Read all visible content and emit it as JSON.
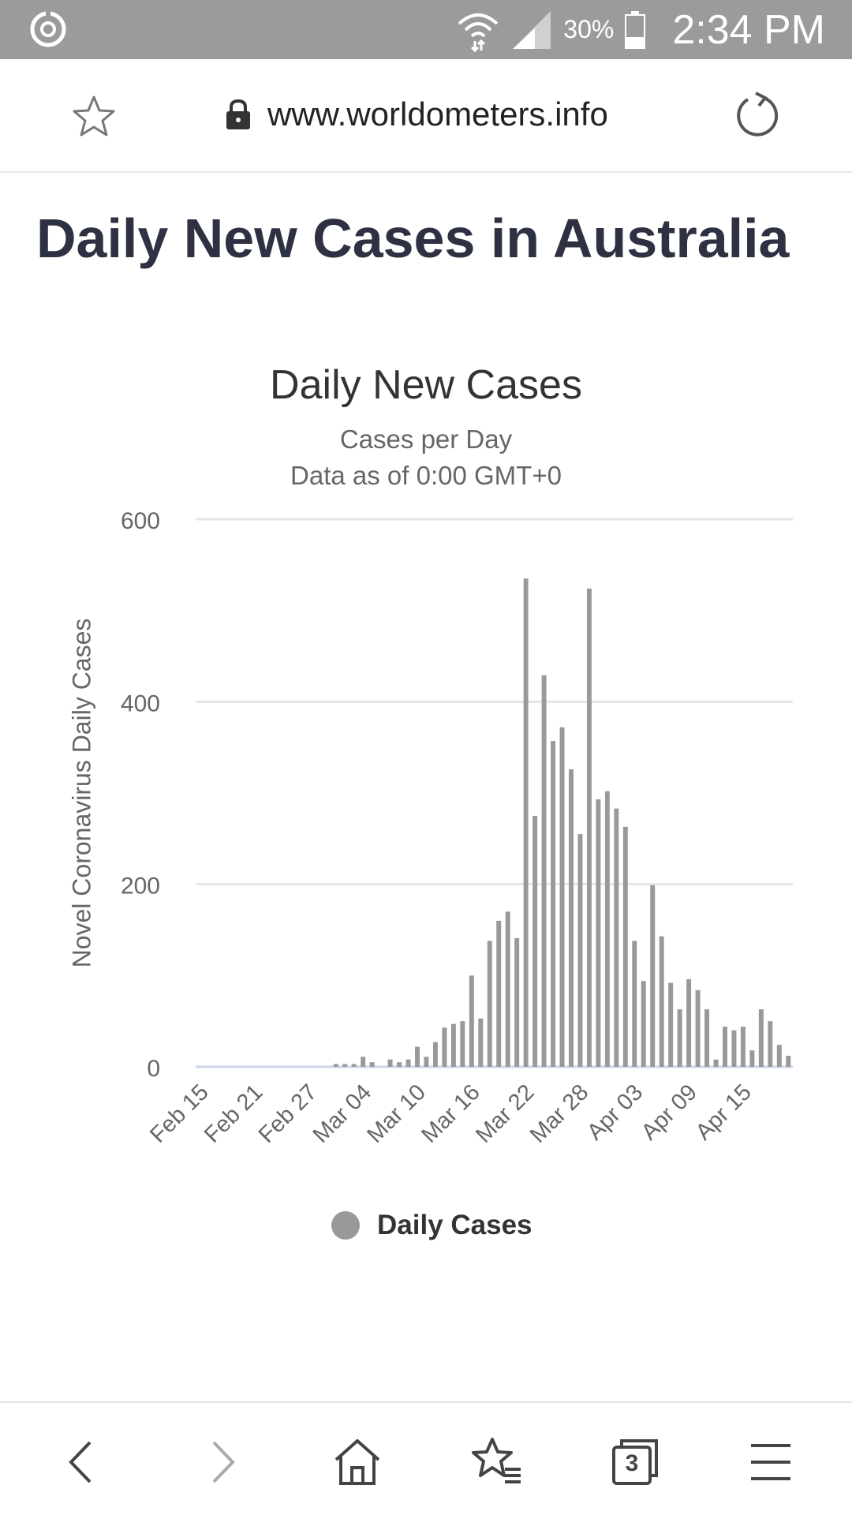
{
  "status_bar": {
    "battery": "30%",
    "time": "2:34 PM"
  },
  "browser": {
    "url": "www.worldometers.info"
  },
  "page": {
    "title": "Daily New Cases in Australia"
  },
  "tabs_count": "3",
  "chart_data": {
    "type": "bar",
    "title": "Daily New Cases",
    "subtitle_lines": [
      "Cases per Day",
      "Data as of 0:00 GMT+0"
    ],
    "ylabel": "Novel Coronavirus Daily Cases",
    "xlabel": "",
    "ylim": [
      0,
      600
    ],
    "yticks": [
      0,
      200,
      400,
      600
    ],
    "grid": true,
    "legend": "bottom-center",
    "color": "#999999",
    "x_tick_labels": [
      "Feb 15",
      "Feb 21",
      "Feb 27",
      "Mar 04",
      "Mar 10",
      "Mar 16",
      "Mar 22",
      "Mar 28",
      "Apr 03",
      "Apr 09",
      "Apr 15"
    ],
    "series": [
      {
        "name": "Daily Cases",
        "categories": [
          "Feb 15",
          "Feb 16",
          "Feb 17",
          "Feb 18",
          "Feb 19",
          "Feb 20",
          "Feb 21",
          "Feb 22",
          "Feb 23",
          "Feb 24",
          "Feb 25",
          "Feb 26",
          "Feb 27",
          "Feb 28",
          "Feb 29",
          "Mar 01",
          "Mar 02",
          "Mar 03",
          "Mar 04",
          "Mar 05",
          "Mar 06",
          "Mar 07",
          "Mar 08",
          "Mar 09",
          "Mar 10",
          "Mar 11",
          "Mar 12",
          "Mar 13",
          "Mar 14",
          "Mar 15",
          "Mar 16",
          "Mar 17",
          "Mar 18",
          "Mar 19",
          "Mar 20",
          "Mar 21",
          "Mar 22",
          "Mar 23",
          "Mar 24",
          "Mar 25",
          "Mar 26",
          "Mar 27",
          "Mar 28",
          "Mar 29",
          "Mar 30",
          "Mar 31",
          "Apr 01",
          "Apr 02",
          "Apr 03",
          "Apr 04",
          "Apr 05",
          "Apr 06",
          "Apr 07",
          "Apr 08",
          "Apr 09",
          "Apr 10",
          "Apr 11",
          "Apr 12",
          "Apr 13",
          "Apr 14",
          "Apr 15",
          "Apr 16",
          "Apr 17",
          "Apr 18",
          "Apr 19",
          "Apr 20"
        ],
        "values": [
          0,
          0,
          0,
          0,
          0,
          0,
          0,
          0,
          0,
          0,
          0,
          0,
          0,
          0,
          0,
          3,
          3,
          3,
          11,
          5,
          0,
          8,
          5,
          8,
          22,
          11,
          27,
          43,
          47,
          50,
          100,
          53,
          138,
          160,
          170,
          141,
          535,
          275,
          429,
          357,
          372,
          326,
          255,
          524,
          293,
          302,
          283,
          263,
          138,
          94,
          199,
          143,
          92,
          63,
          96,
          84,
          63,
          8,
          44,
          40,
          44,
          18,
          63,
          50,
          24,
          12
        ]
      }
    ]
  }
}
